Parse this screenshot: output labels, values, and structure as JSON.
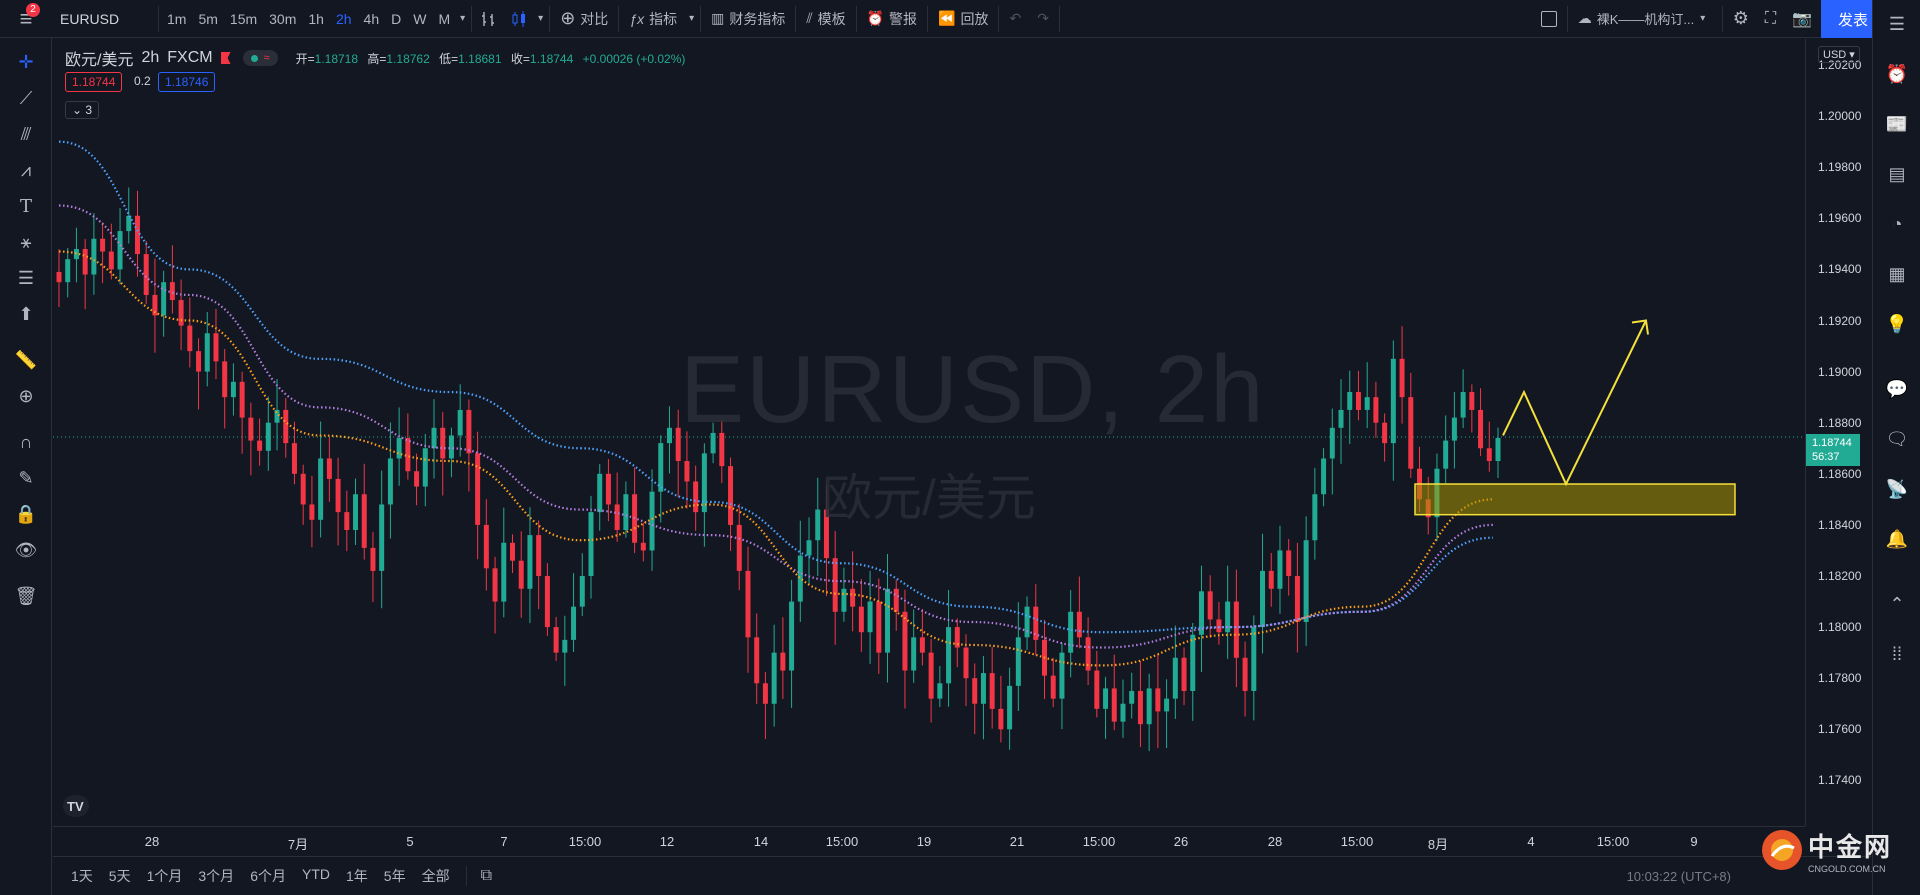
{
  "topbar": {
    "badge": "2",
    "symbol": "EURUSD",
    "intervals": [
      "1m",
      "5m",
      "15m",
      "30m",
      "1h",
      "2h",
      "4h",
      "D",
      "W",
      "M"
    ],
    "active_interval": "2h",
    "compare": "对比",
    "indicators": "指标",
    "financials": "财务指标",
    "templates": "模板",
    "alert": "警报",
    "replay": "回放",
    "layout_name": "裸K——机构订...",
    "publish": "发表"
  },
  "legend": {
    "pair": "欧元/美元",
    "interval": "2h",
    "source": "FXCM",
    "open_key": "开=",
    "open": "1.18718",
    "high_key": "高=",
    "high": "1.18762",
    "low_key": "低=",
    "low": "1.18681",
    "close_key": "收=",
    "close": "1.18744",
    "change": "+0.00026 (+0.02%)",
    "bid": "1.18744",
    "spread": "0.2",
    "ask": "1.18746",
    "collapsed_count": "3"
  },
  "watermark": {
    "symbol": "EURUSD, 2h",
    "description": "欧元/美元"
  },
  "price_axis": {
    "currency": "USD",
    "ticks": [
      "1.20200",
      "1.20000",
      "1.19800",
      "1.19600",
      "1.19400",
      "1.19200",
      "1.19000",
      "1.18800",
      "1.18600",
      "1.18400",
      "1.18200",
      "1.18000",
      "1.17800",
      "1.17600",
      "1.17400"
    ],
    "current_price": "1.18744",
    "countdown": "56:37"
  },
  "time_axis": {
    "ticks": [
      "28",
      "7月",
      "5",
      "7",
      "15:00",
      "12",
      "14",
      "15:00",
      "19",
      "21",
      "15:00",
      "26",
      "28",
      "15:00",
      "8月",
      "4",
      "15:00",
      "9"
    ]
  },
  "bottombar": {
    "ranges": [
      "1天",
      "5天",
      "1个月",
      "3个月",
      "6个月",
      "YTD",
      "1年",
      "5年",
      "全部"
    ],
    "clock": "10:03:22 (UTC+8)",
    "right_text": "中金网",
    "right_sub": "CNGOLD.COM.CN"
  },
  "chart_data": {
    "type": "candlestick",
    "symbol": "EURUSD",
    "interval": "2h",
    "ylim": [
      1.173,
      1.2028
    ],
    "close_series": [
      1.1935,
      1.1944,
      1.1948,
      1.1938,
      1.1952,
      1.1947,
      1.194,
      1.1955,
      1.1961,
      1.1946,
      1.193,
      1.1922,
      1.1935,
      1.1928,
      1.1918,
      1.1908,
      1.19,
      1.1915,
      1.1904,
      1.189,
      1.1896,
      1.1882,
      1.1873,
      1.1869,
      1.188,
      1.1885,
      1.1872,
      1.186,
      1.1848,
      1.1842,
      1.1866,
      1.1858,
      1.1845,
      1.1838,
      1.1852,
      1.1831,
      1.1822,
      1.1848,
      1.1866,
      1.1874,
      1.1861,
      1.1855,
      1.187,
      1.1878,
      1.1866,
      1.1875,
      1.1885,
      1.1868,
      1.184,
      1.1823,
      1.181,
      1.1833,
      1.1826,
      1.1815,
      1.1836,
      1.182,
      1.18,
      1.179,
      1.1795,
      1.1808,
      1.182,
      1.1845,
      1.186,
      1.1848,
      1.1838,
      1.1852,
      1.1833,
      1.183,
      1.1853,
      1.1872,
      1.1878,
      1.1865,
      1.1857,
      1.1845,
      1.1868,
      1.1876,
      1.1863,
      1.184,
      1.1822,
      1.1796,
      1.1778,
      1.177,
      1.179,
      1.1783,
      1.181,
      1.1828,
      1.1834,
      1.1846,
      1.1827,
      1.1806,
      1.1815,
      1.1808,
      1.1798,
      1.181,
      1.179,
      1.1815,
      1.1806,
      1.1783,
      1.1796,
      1.179,
      1.1772,
      1.1778,
      1.18,
      1.1792,
      1.178,
      1.177,
      1.1782,
      1.1768,
      1.176,
      1.1777,
      1.1796,
      1.1808,
      1.1795,
      1.1781,
      1.1772,
      1.179,
      1.1806,
      1.1796,
      1.1783,
      1.1768,
      1.1776,
      1.1763,
      1.177,
      1.1775,
      1.1762,
      1.1776,
      1.1767,
      1.1772,
      1.1788,
      1.1775,
      1.1797,
      1.1814,
      1.1803,
      1.1798,
      1.181,
      1.1788,
      1.1775,
      1.18,
      1.1822,
      1.1815,
      1.183,
      1.182,
      1.1802,
      1.1834,
      1.1852,
      1.1866,
      1.1878,
      1.1885,
      1.1892,
      1.1885,
      1.189,
      1.188,
      1.1872,
      1.1905,
      1.189,
      1.1862,
      1.185,
      1.1843,
      1.1862,
      1.1873,
      1.1882,
      1.1892,
      1.1885,
      1.187,
      1.1865,
      1.1874
    ],
    "ma_blue": [
      1.199,
      1.194,
      1.1905,
      1.1892,
      1.187,
      1.1849,
      1.1825,
      1.1808,
      1.1798,
      1.18,
      1.1806,
      1.1835
    ],
    "ma_purple": [
      1.1965,
      1.193,
      1.1886,
      1.187,
      1.1846,
      1.1836,
      1.1818,
      1.1802,
      1.1792,
      1.18,
      1.1806,
      1.184
    ],
    "ma_orange": [
      1.1947,
      1.192,
      1.1875,
      1.1865,
      1.1834,
      1.1848,
      1.1813,
      1.1793,
      1.1785,
      1.1797,
      1.1808,
      1.185
    ],
    "zone": [
      1.1844,
      1.1856
    ],
    "projection": [
      1.1875,
      1.1892,
      1.1856,
      1.192
    ]
  }
}
